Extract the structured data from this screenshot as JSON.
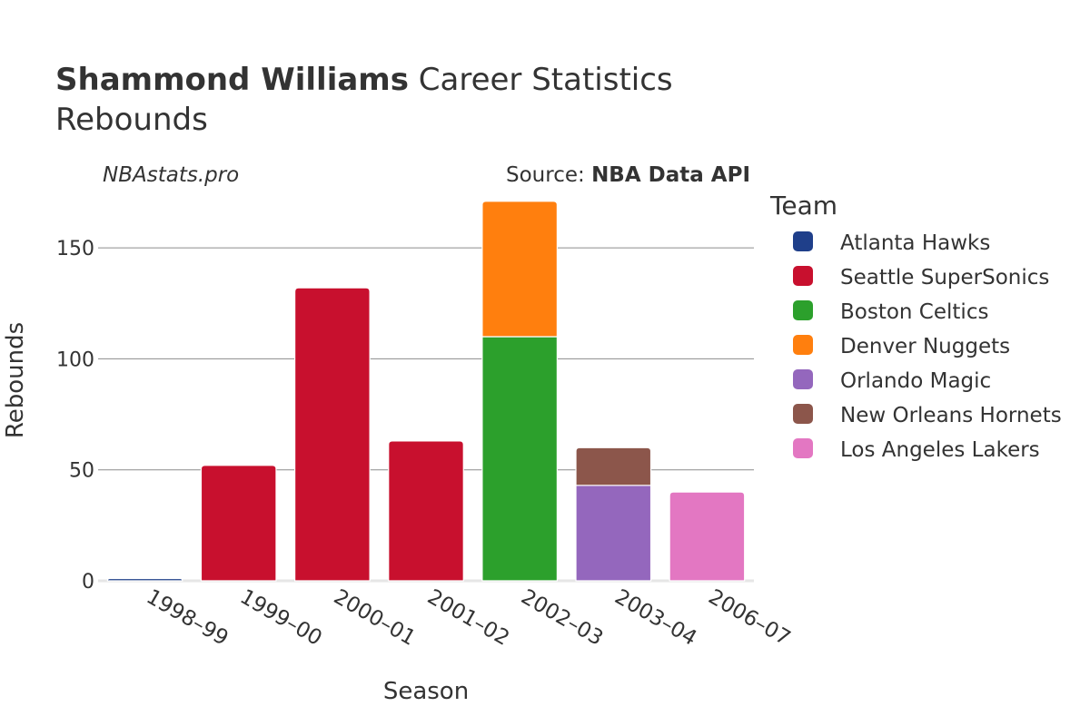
{
  "title": {
    "player": "Shammond Williams",
    "suffix": "Career Statistics",
    "subtitle": "Rebounds"
  },
  "watermark": "NBAstats.pro",
  "source": {
    "label": "Source: ",
    "value": "NBA Data API"
  },
  "legend": {
    "title": "Team",
    "items": [
      {
        "name": "Atlanta Hawks",
        "color": "#1f3f8a"
      },
      {
        "name": "Seattle SuperSonics",
        "color": "#c8102e"
      },
      {
        "name": "Boston Celtics",
        "color": "#2ca02c"
      },
      {
        "name": "Denver Nuggets",
        "color": "#ff7f0e"
      },
      {
        "name": "Orlando Magic",
        "color": "#9467bd"
      },
      {
        "name": "New Orleans Hornets",
        "color": "#8c564b"
      },
      {
        "name": "Los Angeles Lakers",
        "color": "#e377c2"
      }
    ]
  },
  "chart_data": {
    "type": "bar",
    "stacked": true,
    "xlabel": "Season",
    "ylabel": "Rebounds",
    "ylim": [
      0,
      175
    ],
    "yticks": [
      0,
      50,
      100,
      150
    ],
    "categories": [
      "1998–99",
      "1999–00",
      "2000–01",
      "2001–02",
      "2002–03",
      "2003–04",
      "2006–07"
    ],
    "series": [
      {
        "name": "Atlanta Hawks",
        "values": [
          1,
          0,
          0,
          0,
          0,
          0,
          0
        ]
      },
      {
        "name": "Seattle SuperSonics",
        "values": [
          0,
          52,
          132,
          63,
          0,
          0,
          0
        ]
      },
      {
        "name": "Boston Celtics",
        "values": [
          0,
          0,
          0,
          0,
          110,
          0,
          0
        ]
      },
      {
        "name": "Denver Nuggets",
        "values": [
          0,
          0,
          0,
          0,
          61,
          0,
          0
        ]
      },
      {
        "name": "Orlando Magic",
        "values": [
          0,
          0,
          0,
          0,
          0,
          43,
          0
        ]
      },
      {
        "name": "New Orleans Hornets",
        "values": [
          0,
          0,
          0,
          0,
          0,
          17,
          0
        ]
      },
      {
        "name": "Los Angeles Lakers",
        "values": [
          0,
          0,
          0,
          0,
          0,
          0,
          40
        ]
      }
    ]
  }
}
